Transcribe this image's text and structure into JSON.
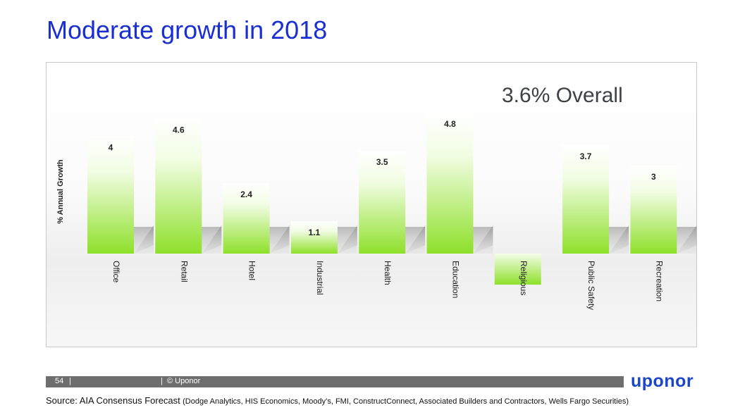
{
  "slide": {
    "title": "Moderate growth in 2018",
    "overall": "3.6% Overall"
  },
  "footer": {
    "page_number": "54",
    "separator": "|",
    "copyright": "© Uponor",
    "brand": "uponor"
  },
  "source": {
    "lead": "Source: AIA Consensus Forecast",
    "list": "(Dodge Analytics, HIS Economics, Moody’s, FMI, ConstructConnect, Associated Builders and Contractors, Wells Fargo Securities)"
  },
  "colors": {
    "title": "#1a2fd0",
    "bar_top": "#ffffff",
    "bar_bottom": "#8ee02a",
    "brand": "#1a46c8",
    "footer_bar": "#6e6e6e"
  },
  "chart_data": {
    "type": "bar",
    "categories": [
      "Office",
      "Retail",
      "Hotel",
      "Industrial",
      "Health",
      "Education",
      "Religious",
      "Public Safety",
      "Recreation"
    ],
    "values": [
      4,
      4.6,
      2.4,
      1.1,
      3.5,
      4.8,
      -1,
      3.7,
      3
    ],
    "data_labels": [
      "4",
      "4.6",
      "2.4",
      "1.1",
      "3.5",
      "4.8",
      "",
      "3.7",
      "3"
    ],
    "ylabel": "% Annual Growth",
    "ylim": [
      -1,
      4.8
    ],
    "grid": false,
    "legend": "none"
  }
}
